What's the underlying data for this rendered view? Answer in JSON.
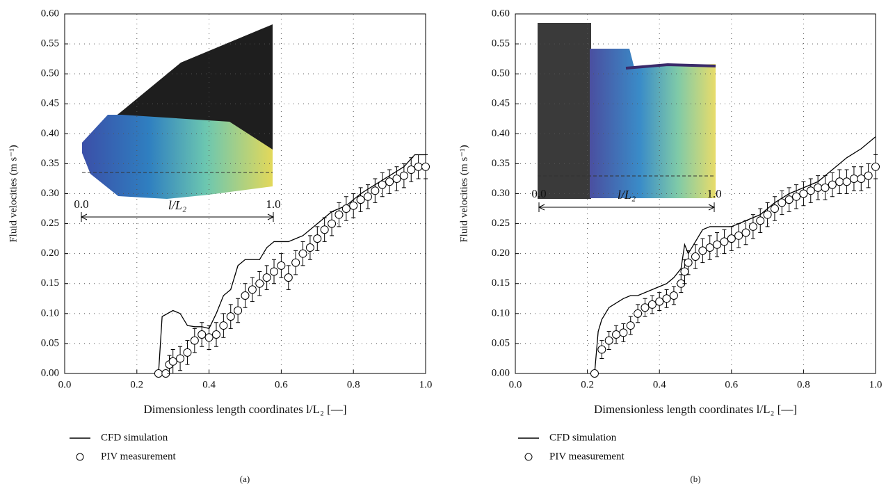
{
  "chart_data": [
    {
      "type": "line",
      "caption": "(a)",
      "xlabel": "Dimensionless length coordinates l/L₂ [—]",
      "ylabel": "Fluid velocities (m s⁻¹)",
      "xlim": [
        0,
        1
      ],
      "ylim": [
        0,
        0.6
      ],
      "grid": true,
      "xticks": [
        {
          "value": 0,
          "label": "0.0"
        },
        {
          "value": 0.2,
          "label": "0.2"
        },
        {
          "value": 0.4,
          "label": "0.4"
        },
        {
          "value": 0.6,
          "label": "0.6"
        },
        {
          "value": 0.8,
          "label": "0.8"
        },
        {
          "value": 1,
          "label": "1.0"
        }
      ],
      "yticks": [
        {
          "value": 0,
          "label": "0.00"
        },
        {
          "value": 0.05,
          "label": "0.05"
        },
        {
          "value": 0.1,
          "label": "0.10"
        },
        {
          "value": 0.15,
          "label": "0.15"
        },
        {
          "value": 0.2,
          "label": "0.20"
        },
        {
          "value": 0.25,
          "label": "0.25"
        },
        {
          "value": 0.3,
          "label": "0.30"
        },
        {
          "value": 0.35,
          "label": "0.35"
        },
        {
          "value": 0.4,
          "label": "0.40"
        },
        {
          "value": 0.45,
          "label": "0.45"
        },
        {
          "value": 0.5,
          "label": "0.50"
        },
        {
          "value": 0.55,
          "label": "0.55"
        },
        {
          "value": 0.6,
          "label": "0.60"
        }
      ],
      "inset": {
        "start_label": "0.0",
        "end_label": "1.0",
        "label": "l/L₂"
      },
      "series": [
        {
          "name": "CFD simulation",
          "color": "#000000",
          "style": "line",
          "x": [
            0.25,
            0.26,
            0.27,
            0.3,
            0.32,
            0.34,
            0.36,
            0.38,
            0.4,
            0.42,
            0.44,
            0.46,
            0.48,
            0.5,
            0.52,
            0.54,
            0.56,
            0.58,
            0.6,
            0.62,
            0.64,
            0.66,
            0.7,
            0.74,
            0.78,
            0.82,
            0.86,
            0.9,
            0.94,
            0.97,
            1.0
          ],
          "values": [
            0,
            0,
            0.095,
            0.105,
            0.1,
            0.08,
            0.078,
            0.078,
            0.075,
            0.1,
            0.13,
            0.14,
            0.18,
            0.19,
            0.19,
            0.19,
            0.21,
            0.22,
            0.22,
            0.22,
            0.225,
            0.23,
            0.25,
            0.27,
            0.28,
            0.3,
            0.315,
            0.33,
            0.345,
            0.365,
            0.365
          ]
        },
        {
          "name": "PIV measurement",
          "color": "#000000",
          "style": "marker",
          "x": [
            0.26,
            0.28,
            0.29,
            0.3,
            0.32,
            0.34,
            0.36,
            0.38,
            0.4,
            0.42,
            0.44,
            0.46,
            0.48,
            0.5,
            0.52,
            0.54,
            0.56,
            0.58,
            0.6,
            0.62,
            0.64,
            0.66,
            0.68,
            0.7,
            0.72,
            0.74,
            0.76,
            0.78,
            0.8,
            0.82,
            0.84,
            0.86,
            0.88,
            0.9,
            0.92,
            0.94,
            0.96,
            0.98,
            1.0
          ],
          "values": [
            0,
            0,
            0.015,
            0.02,
            0.025,
            0.035,
            0.055,
            0.065,
            0.06,
            0.065,
            0.08,
            0.095,
            0.105,
            0.13,
            0.14,
            0.15,
            0.16,
            0.17,
            0.18,
            0.16,
            0.185,
            0.2,
            0.21,
            0.225,
            0.24,
            0.25,
            0.265,
            0.275,
            0.28,
            0.29,
            0.295,
            0.305,
            0.315,
            0.32,
            0.325,
            0.33,
            0.34,
            0.345,
            0.345
          ],
          "errors": [
            0,
            0,
            0.015,
            0.02,
            0.02,
            0.02,
            0.02,
            0.02,
            0.02,
            0.02,
            0.02,
            0.02,
            0.02,
            0.02,
            0.02,
            0.02,
            0.02,
            0.02,
            0.02,
            0.02,
            0.02,
            0.02,
            0.02,
            0.02,
            0.02,
            0.02,
            0.02,
            0.02,
            0.02,
            0.02,
            0.02,
            0.02,
            0.02,
            0.02,
            0.02,
            0.02,
            0.02,
            0.02,
            0.02
          ]
        }
      ]
    },
    {
      "type": "line",
      "caption": "(b)",
      "xlabel": "Dimensionless length coordinates l/L₂ [—]",
      "ylabel": "Fluid velocities (m s⁻¹)",
      "xlim": [
        0,
        1
      ],
      "ylim": [
        0,
        0.6
      ],
      "grid": true,
      "xticks": [
        {
          "value": 0,
          "label": "0.0"
        },
        {
          "value": 0.2,
          "label": "0.2"
        },
        {
          "value": 0.4,
          "label": "0.4"
        },
        {
          "value": 0.6,
          "label": "0.6"
        },
        {
          "value": 0.8,
          "label": "0.8"
        },
        {
          "value": 1,
          "label": "1.0"
        }
      ],
      "yticks": [
        {
          "value": 0,
          "label": "0.00"
        },
        {
          "value": 0.05,
          "label": "0.05"
        },
        {
          "value": 0.1,
          "label": "0.10"
        },
        {
          "value": 0.15,
          "label": "0.15"
        },
        {
          "value": 0.2,
          "label": "0.20"
        },
        {
          "value": 0.25,
          "label": "0.25"
        },
        {
          "value": 0.3,
          "label": "0.30"
        },
        {
          "value": 0.35,
          "label": "0.35"
        },
        {
          "value": 0.4,
          "label": "0.40"
        },
        {
          "value": 0.45,
          "label": "0.45"
        },
        {
          "value": 0.5,
          "label": "0.50"
        },
        {
          "value": 0.55,
          "label": "0.55"
        },
        {
          "value": 0.6,
          "label": "0.60"
        }
      ],
      "inset": {
        "start_label": "0.0",
        "end_label": "1.0",
        "label": "l/L₂"
      },
      "series": [
        {
          "name": "CFD simulation",
          "color": "#000000",
          "style": "line",
          "x": [
            0.22,
            0.23,
            0.24,
            0.26,
            0.3,
            0.32,
            0.34,
            0.38,
            0.42,
            0.44,
            0.46,
            0.47,
            0.48,
            0.5,
            0.52,
            0.54,
            0.56,
            0.6,
            0.64,
            0.68,
            0.72,
            0.76,
            0.8,
            0.84,
            0.88,
            0.92,
            0.96,
            1.0
          ],
          "values": [
            0,
            0.07,
            0.09,
            0.11,
            0.125,
            0.13,
            0.13,
            0.14,
            0.15,
            0.16,
            0.175,
            0.215,
            0.2,
            0.22,
            0.24,
            0.245,
            0.245,
            0.245,
            0.255,
            0.265,
            0.285,
            0.3,
            0.31,
            0.32,
            0.34,
            0.36,
            0.375,
            0.395
          ]
        },
        {
          "name": "PIV measurement",
          "color": "#000000",
          "style": "marker",
          "x": [
            0.22,
            0.24,
            0.26,
            0.28,
            0.3,
            0.32,
            0.34,
            0.36,
            0.38,
            0.4,
            0.42,
            0.44,
            0.46,
            0.47,
            0.48,
            0.5,
            0.52,
            0.54,
            0.56,
            0.58,
            0.6,
            0.62,
            0.64,
            0.66,
            0.68,
            0.7,
            0.72,
            0.74,
            0.76,
            0.78,
            0.8,
            0.82,
            0.84,
            0.86,
            0.88,
            0.9,
            0.92,
            0.94,
            0.96,
            0.98,
            1.0
          ],
          "values": [
            0,
            0.04,
            0.055,
            0.065,
            0.068,
            0.08,
            0.1,
            0.11,
            0.115,
            0.12,
            0.125,
            0.13,
            0.15,
            0.17,
            0.185,
            0.195,
            0.205,
            0.21,
            0.215,
            0.22,
            0.225,
            0.23,
            0.235,
            0.245,
            0.255,
            0.265,
            0.275,
            0.285,
            0.29,
            0.295,
            0.3,
            0.305,
            0.31,
            0.31,
            0.315,
            0.32,
            0.32,
            0.325,
            0.325,
            0.33,
            0.345
          ],
          "errors": [
            0,
            0.015,
            0.015,
            0.015,
            0.015,
            0.015,
            0.015,
            0.015,
            0.015,
            0.015,
            0.015,
            0.015,
            0.015,
            0.02,
            0.02,
            0.02,
            0.02,
            0.02,
            0.02,
            0.02,
            0.02,
            0.02,
            0.02,
            0.02,
            0.02,
            0.02,
            0.02,
            0.02,
            0.02,
            0.02,
            0.02,
            0.02,
            0.02,
            0.02,
            0.02,
            0.02,
            0.02,
            0.02,
            0.02,
            0.02,
            0.02
          ]
        }
      ]
    }
  ]
}
